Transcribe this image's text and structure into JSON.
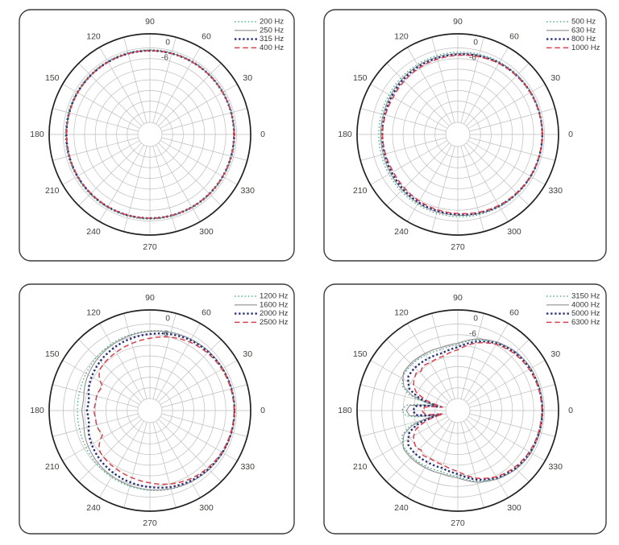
{
  "figure": {
    "description": "Four polar frequency-directivity plots arranged in a 2x2 grid",
    "background_color": "#ffffff",
    "panel_border_color": "#3c3c3c",
    "grid_color": "#bdbdbd",
    "outer_circle_color": "#222222",
    "angle_label_color": "#3f3f3a",
    "ring_label_color": "#444444",
    "legend_text_color": "#333333"
  },
  "axis": {
    "angle_labels": [
      "0",
      "30",
      "60",
      "90",
      "120",
      "150",
      "180",
      "210",
      "240",
      "270",
      "300",
      "330"
    ],
    "ring_labels": [
      "0",
      "-6"
    ],
    "db_per_ring": 6
  },
  "line_styles": {
    "dotted": {
      "color": "#3aa389",
      "kind": "dotted"
    },
    "solid": {
      "color": "#8f8f8f",
      "kind": "solid"
    },
    "bold-dotted": {
      "color": "#2b3178",
      "kind": "bold-dotted"
    },
    "dashed": {
      "color": "#d6424f",
      "kind": "dashed"
    }
  },
  "chart_data": [
    {
      "type": "polar-line",
      "position": "top-left",
      "legend_position": "top-right",
      "ring_labels_db": [
        0,
        -6
      ],
      "series": [
        {
          "name": "200 Hz",
          "style": "dotted",
          "points_deg_db": [
            [
              0,
              -0.9
            ],
            [
              30,
              -0.92
            ],
            [
              60,
              -0.97
            ],
            [
              90,
              -1.0
            ],
            [
              120,
              -1.06
            ],
            [
              150,
              -1.12
            ],
            [
              180,
              -1.15
            ]
          ],
          "mirrored": true
        },
        {
          "name": "250 Hz",
          "style": "solid",
          "points_deg_db": [
            [
              0,
              -1.35
            ],
            [
              30,
              -1.37
            ],
            [
              60,
              -1.42
            ],
            [
              90,
              -1.47
            ],
            [
              120,
              -1.53
            ],
            [
              150,
              -1.6
            ],
            [
              180,
              -1.65
            ]
          ],
          "mirrored": true
        },
        {
          "name": "315 Hz",
          "style": "bold-dotted",
          "points_deg_db": [
            [
              0,
              -1.45
            ],
            [
              30,
              -1.47
            ],
            [
              60,
              -1.52
            ],
            [
              90,
              -1.57
            ],
            [
              120,
              -1.64
            ],
            [
              150,
              -1.72
            ],
            [
              180,
              -1.78
            ]
          ],
          "mirrored": true
        },
        {
          "name": "400 Hz",
          "style": "dashed",
          "points_deg_db": [
            [
              0,
              -1.45
            ],
            [
              30,
              -1.48
            ],
            [
              60,
              -1.53
            ],
            [
              90,
              -1.58
            ],
            [
              120,
              -1.68
            ],
            [
              150,
              -1.8
            ],
            [
              180,
              -1.9
            ]
          ],
          "mirrored": true
        }
      ]
    },
    {
      "type": "polar-line",
      "position": "top-right",
      "legend_position": "top-right",
      "ring_labels_db": [
        0,
        -6
      ],
      "series": [
        {
          "name": "500 Hz",
          "style": "dotted",
          "points_deg_db": [
            [
              0,
              -0.9
            ],
            [
              30,
              -1.1
            ],
            [
              60,
              -1.6
            ],
            [
              90,
              -2.4
            ],
            [
              120,
              -3.2
            ],
            [
              150,
              -4.0
            ],
            [
              165,
              -4.2
            ],
            [
              180,
              -4.3
            ]
          ],
          "mirrored": true
        },
        {
          "name": "630 Hz",
          "style": "solid",
          "points_deg_db": [
            [
              0,
              -1.1
            ],
            [
              30,
              -1.3
            ],
            [
              60,
              -2.0
            ],
            [
              90,
              -3.2
            ],
            [
              120,
              -4.0
            ],
            [
              150,
              -5.0
            ],
            [
              165,
              -5.3
            ],
            [
              180,
              -5.4
            ]
          ],
          "mirrored": true
        },
        {
          "name": "800 Hz",
          "style": "bold-dotted",
          "points_deg_db": [
            [
              0,
              -1.2
            ],
            [
              30,
              -1.5
            ],
            [
              60,
              -2.3
            ],
            [
              90,
              -3.7
            ],
            [
              120,
              -4.6
            ],
            [
              150,
              -5.8
            ],
            [
              165,
              -6.2
            ],
            [
              180,
              -6.3
            ]
          ],
          "mirrored": true
        },
        {
          "name": "1000 Hz",
          "style": "dashed",
          "points_deg_db": [
            [
              0,
              -1.3
            ],
            [
              30,
              -1.6
            ],
            [
              60,
              -2.6
            ],
            [
              90,
              -4.2
            ],
            [
              105,
              -4.8
            ],
            [
              120,
              -5.4
            ],
            [
              135,
              -6.2
            ],
            [
              150,
              -6.8
            ],
            [
              165,
              -6.6
            ],
            [
              180,
              -6.3
            ]
          ],
          "mirrored": true
        }
      ]
    },
    {
      "type": "polar-line",
      "position": "bottom-left",
      "legend_position": "top-right",
      "ring_labels_db": [
        0,
        -6
      ],
      "series": [
        {
          "name": "1200 Hz",
          "style": "dotted",
          "points_deg_db": [
            [
              0,
              -1.0
            ],
            [
              15,
              -1.1
            ],
            [
              30,
              -1.3
            ],
            [
              45,
              -1.7
            ],
            [
              60,
              -2.3
            ],
            [
              75,
              -3.0
            ],
            [
              90,
              -3.8
            ],
            [
              105,
              -4.6
            ],
            [
              120,
              -5.4
            ],
            [
              135,
              -6.3
            ],
            [
              150,
              -7.2
            ],
            [
              165,
              -7.8
            ],
            [
              180,
              -7.9
            ]
          ],
          "mirrored": true
        },
        {
          "name": "1600 Hz",
          "style": "solid",
          "points_deg_db": [
            [
              0,
              -1.0
            ],
            [
              15,
              -1.1
            ],
            [
              30,
              -1.35
            ],
            [
              45,
              -1.8
            ],
            [
              60,
              -2.4
            ],
            [
              75,
              -3.2
            ],
            [
              90,
              -4.1
            ],
            [
              105,
              -5.1
            ],
            [
              120,
              -6.1
            ],
            [
              135,
              -7.2
            ],
            [
              150,
              -8.6
            ],
            [
              158,
              -9.4
            ],
            [
              164,
              -10.2
            ],
            [
              170,
              -10.9
            ],
            [
              175,
              -10.8
            ],
            [
              180,
              -10.4
            ]
          ],
          "mirrored": true
        },
        {
          "name": "2000 Hz",
          "style": "bold-dotted",
          "points_deg_db": [
            [
              0,
              -1.2
            ],
            [
              15,
              -1.3
            ],
            [
              30,
              -1.6
            ],
            [
              45,
              -2.2
            ],
            [
              60,
              -3.0
            ],
            [
              75,
              -4.2
            ],
            [
              90,
              -5.6
            ],
            [
              105,
              -6.8
            ],
            [
              120,
              -8.0
            ],
            [
              135,
              -9.3
            ],
            [
              150,
              -10.8
            ],
            [
              158,
              -11.8
            ],
            [
              164,
              -12.9
            ],
            [
              170,
              -13.9
            ],
            [
              175,
              -13.8
            ],
            [
              180,
              -13.3
            ]
          ],
          "mirrored": true
        },
        {
          "name": "2500 Hz",
          "style": "dashed",
          "points_deg_db": [
            [
              0,
              -1.4
            ],
            [
              15,
              -1.6
            ],
            [
              30,
              -2.0
            ],
            [
              45,
              -2.9
            ],
            [
              60,
              -4.1
            ],
            [
              75,
              -5.9
            ],
            [
              90,
              -8.0
            ],
            [
              105,
              -9.6
            ],
            [
              120,
              -10.8
            ],
            [
              130,
              -11.4
            ],
            [
              140,
              -12.2
            ],
            [
              145,
              -13.8
            ],
            [
              149,
              -16.0
            ],
            [
              153,
              -18.8
            ],
            [
              158,
              -18.2
            ],
            [
              163,
              -17.6
            ],
            [
              170,
              -17.8
            ],
            [
              175,
              -17.6
            ],
            [
              180,
              -17.2
            ]
          ],
          "mirrored": true
        }
      ]
    },
    {
      "type": "polar-line",
      "position": "bottom-right",
      "legend_position": "top-right",
      "ring_labels_db": [
        0,
        -6
      ],
      "series": [
        {
          "name": "3150 Hz",
          "style": "dotted",
          "points_deg_db": [
            [
              0,
              -1.0
            ],
            [
              15,
              -1.2
            ],
            [
              30,
              -1.5
            ],
            [
              45,
              -2.6
            ],
            [
              60,
              -4.6
            ],
            [
              75,
              -7.5
            ],
            [
              90,
              -11.5
            ],
            [
              105,
              -13.2
            ],
            [
              120,
              -12.6
            ],
            [
              135,
              -12.0
            ],
            [
              145,
              -12.2
            ],
            [
              150,
              -12.8
            ],
            [
              156,
              -14.5
            ],
            [
              162,
              -20
            ],
            [
              166,
              -30
            ],
            [
              168,
              -36
            ],
            [
              171,
              -26
            ],
            [
              174,
              -19.5
            ],
            [
              180,
              -17.2
            ]
          ],
          "mirrored": true
        },
        {
          "name": "4000 Hz",
          "style": "solid",
          "points_deg_db": [
            [
              0,
              -0.8
            ],
            [
              15,
              -1.0
            ],
            [
              30,
              -1.2
            ],
            [
              45,
              -2.2
            ],
            [
              60,
              -4.2
            ],
            [
              75,
              -7.0
            ],
            [
              90,
              -10.8
            ],
            [
              105,
              -12.0
            ],
            [
              120,
              -11.6
            ],
            [
              135,
              -11.2
            ],
            [
              145,
              -11.4
            ],
            [
              150,
              -13.2
            ],
            [
              156,
              -15.5
            ],
            [
              162,
              -22
            ],
            [
              166,
              -32
            ],
            [
              168,
              -37
            ],
            [
              171,
              -28
            ],
            [
              174,
              -21.5
            ],
            [
              180,
              -19.8
            ]
          ],
          "mirrored": true
        },
        {
          "name": "5000 Hz",
          "style": "bold-dotted",
          "points_deg_db": [
            [
              0,
              -1.2
            ],
            [
              15,
              -1.4
            ],
            [
              30,
              -1.8
            ],
            [
              45,
              -2.9
            ],
            [
              60,
              -5.0
            ],
            [
              75,
              -8.5
            ],
            [
              90,
              -13.0
            ],
            [
              105,
              -15.2
            ],
            [
              120,
              -15.0
            ],
            [
              135,
              -14.6
            ],
            [
              145,
              -14.8
            ],
            [
              150,
              -16.5
            ],
            [
              156,
              -19
            ],
            [
              162,
              -26
            ],
            [
              166,
              -35
            ],
            [
              168,
              -39
            ],
            [
              171,
              -31
            ],
            [
              174,
              -25
            ],
            [
              180,
              -23.5
            ]
          ],
          "mirrored": true
        },
        {
          "name": "6300 Hz",
          "style": "dashed",
          "points_deg_db": [
            [
              0,
              -1.5
            ],
            [
              15,
              -1.7
            ],
            [
              30,
              -2.3
            ],
            [
              45,
              -3.5
            ],
            [
              60,
              -5.6
            ],
            [
              75,
              -9.3
            ],
            [
              90,
              -14.5
            ],
            [
              105,
              -17.0
            ],
            [
              120,
              -17.5
            ],
            [
              128,
              -16.8
            ],
            [
              133,
              -18.4
            ],
            [
              138,
              -17.2
            ],
            [
              145,
              -18.6
            ],
            [
              150,
              -20
            ],
            [
              156,
              -23
            ],
            [
              162,
              -30
            ],
            [
              166,
              -38
            ],
            [
              168,
              -40
            ],
            [
              171,
              -34
            ],
            [
              174,
              -30
            ],
            [
              180,
              -28.5
            ]
          ],
          "mirrored": true
        }
      ]
    }
  ]
}
